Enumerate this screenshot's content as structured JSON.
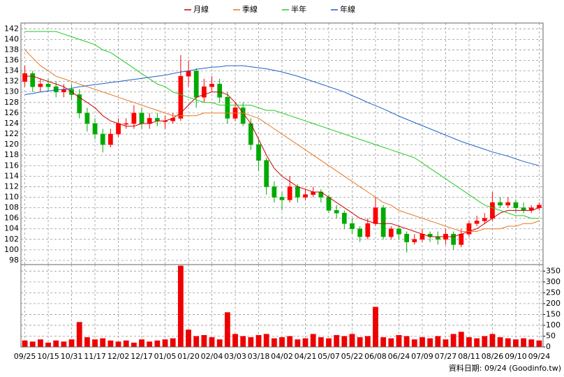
{
  "chart_data": [
    {
      "type": "candlestick",
      "up_color": "#ff0000",
      "down_color": "#00aa00",
      "open": [
        132,
        133.5,
        131,
        131.5,
        131,
        130,
        130.5,
        129.5,
        126,
        124,
        122,
        120,
        122,
        124,
        124,
        126,
        124,
        125,
        124.5,
        124.5,
        125,
        133,
        134,
        129,
        131,
        131.5,
        129,
        125,
        127,
        124,
        120,
        117,
        112,
        110,
        109.5,
        112,
        110,
        110.5,
        111,
        110,
        107.5,
        107,
        105,
        104,
        102.5,
        105,
        108,
        102.5,
        104,
        103,
        101.5,
        102,
        103,
        102.5,
        102,
        103,
        101,
        103,
        105,
        105.5,
        106,
        109,
        108.5,
        109,
        108,
        107.5,
        108
      ],
      "high": [
        135,
        134,
        132.5,
        132.5,
        132,
        131.5,
        131.5,
        130.5,
        127,
        125,
        123,
        123,
        125,
        125,
        127.5,
        127,
        126,
        126,
        125.5,
        126,
        137,
        136,
        134.5,
        132.5,
        133,
        132.5,
        130,
        128,
        128,
        125,
        121,
        117.5,
        113,
        111,
        114,
        112.5,
        111.5,
        112,
        111.5,
        110.5,
        108.5,
        107.5,
        106,
        104.5,
        106,
        110,
        108.5,
        104.5,
        104.5,
        103.5,
        103,
        104,
        103.5,
        103.5,
        104,
        103.5,
        104,
        105.5,
        106.5,
        107,
        111,
        110,
        110,
        109.5,
        109,
        108.5,
        109
      ],
      "low": [
        131,
        130,
        130,
        130,
        129,
        129,
        128.5,
        125,
        122.5,
        121,
        118.5,
        119.5,
        121.5,
        123,
        123,
        123,
        123,
        123.5,
        123,
        124,
        124.5,
        131,
        127,
        128,
        130,
        128,
        124,
        124.5,
        123.5,
        119,
        115,
        110.5,
        109,
        107.5,
        109,
        109,
        109.5,
        110,
        109,
        107,
        106,
        104,
        103,
        101.5,
        102,
        104.5,
        102,
        102,
        102,
        99.5,
        101,
        101.5,
        101.5,
        101,
        101,
        100,
        100.5,
        102.5,
        104.5,
        105,
        105.5,
        108,
        108,
        107,
        107,
        107,
        107.5
      ],
      "close": [
        133.5,
        131,
        131.5,
        131,
        130,
        130.5,
        129.5,
        126,
        124,
        122,
        120,
        122,
        124,
        124,
        126,
        124,
        125,
        124.5,
        124.5,
        125,
        133,
        134,
        129,
        131,
        131.5,
        129,
        125,
        127,
        124,
        120,
        117,
        112,
        110,
        109.5,
        112,
        110,
        110.5,
        111,
        110,
        107.5,
        107,
        105,
        104,
        102.5,
        105,
        108,
        102.5,
        104,
        103,
        101.5,
        102,
        103,
        102.5,
        102,
        103,
        101,
        103,
        105,
        105.5,
        106,
        109,
        108.5,
        109,
        108,
        107.5,
        108,
        108.5
      ],
      "series": [
        {
          "name": "月線",
          "color": "#cc0000",
          "values": [
            133,
            133,
            132.5,
            132,
            131.5,
            131,
            130,
            129,
            128,
            127,
            125.5,
            124.5,
            124,
            123.5,
            123.5,
            124,
            124,
            124.5,
            124.5,
            125,
            126,
            127.5,
            129,
            129.5,
            130,
            130,
            129.5,
            128,
            126,
            124,
            121,
            118,
            115.5,
            114,
            113,
            112,
            111.5,
            111,
            111,
            110,
            109,
            108,
            107,
            106,
            105.5,
            105,
            105,
            105,
            104.5,
            104,
            103.5,
            103,
            102.5,
            102.5,
            102.5,
            102.5,
            103,
            103.5,
            104,
            105,
            106,
            107,
            107.5,
            107.5,
            107.5,
            107.5,
            108
          ]
        },
        {
          "name": "季線",
          "color": "#e87722",
          "values": [
            138,
            136.5,
            135,
            134,
            133,
            132.5,
            132,
            131.5,
            131,
            130.5,
            130,
            129.5,
            129,
            128.5,
            128,
            127.5,
            127,
            126.5,
            126,
            125.5,
            125.5,
            125.5,
            125.5,
            126,
            126,
            126,
            126,
            126,
            126,
            125.5,
            125,
            124,
            123,
            122,
            121,
            120,
            119,
            118,
            117,
            116,
            115,
            114,
            113,
            112,
            111,
            110,
            109,
            108.5,
            107.5,
            107,
            106.5,
            106,
            105.5,
            105,
            104.5,
            104,
            103.5,
            103.5,
            103.5,
            104,
            104,
            104,
            104.5,
            104.5,
            105,
            105,
            105.5
          ]
        },
        {
          "name": "半年",
          "color": "#22cc22",
          "values": [
            141.5,
            141.5,
            141.5,
            141.5,
            141.5,
            141,
            140.5,
            140,
            139.5,
            139,
            138,
            137.5,
            136.5,
            135.5,
            134.5,
            133.5,
            132.5,
            131.5,
            131,
            130,
            129.5,
            129,
            128.5,
            128,
            128,
            127.5,
            127.5,
            127.5,
            127.5,
            127.5,
            127,
            126.5,
            126.5,
            126,
            125.5,
            125,
            124.5,
            124,
            123.5,
            123,
            122.5,
            122,
            121.5,
            121,
            120.5,
            120,
            119.5,
            119,
            118.5,
            118,
            117.5,
            116.5,
            115.5,
            114.5,
            113.5,
            112.5,
            111.5,
            110.5,
            109.5,
            108.5,
            108,
            107.5,
            107,
            106.5,
            106.5,
            106,
            106
          ]
        },
        {
          "name": "年線",
          "color": "#1f5fcc",
          "values": [
            129.5,
            129.7,
            130,
            130.2,
            130.4,
            130.5,
            130.7,
            131,
            131.2,
            131.4,
            131.6,
            131.8,
            132,
            132.2,
            132.4,
            132.6,
            132.8,
            133,
            133.2,
            133.5,
            133.8,
            134,
            134.3,
            134.5,
            134.7,
            134.8,
            135,
            135,
            135,
            134.8,
            134.6,
            134.4,
            134.1,
            133.8,
            133.4,
            133,
            132.5,
            132,
            131.5,
            131,
            130.5,
            130,
            129.3,
            128.7,
            128,
            127.4,
            126.8,
            126.1,
            125.4,
            124.8,
            124.2,
            123.6,
            123,
            122.4,
            121.8,
            121.2,
            120.6,
            120.1,
            119.6,
            119.1,
            118.6,
            118.2,
            117.8,
            117.3,
            116.8,
            116.4,
            116
          ]
        }
      ],
      "legend": "top",
      "grid": true,
      "xlim": [
        -0.5,
        66.5
      ],
      "ylim": [
        97.2,
        143.1
      ],
      "yticks": [
        98,
        100,
        102,
        104,
        106,
        108,
        110,
        112,
        114,
        116,
        118,
        120,
        122,
        124,
        126,
        128,
        130,
        132,
        134,
        136,
        138,
        140,
        142
      ]
    },
    {
      "type": "bar",
      "color": "#ee0000",
      "values": [
        30,
        25,
        35,
        20,
        30,
        25,
        35,
        115,
        45,
        35,
        40,
        30,
        25,
        30,
        20,
        35,
        25,
        30,
        35,
        40,
        375,
        80,
        50,
        55,
        45,
        35,
        160,
        60,
        50,
        45,
        55,
        60,
        40,
        45,
        50,
        35,
        40,
        60,
        45,
        40,
        55,
        50,
        60,
        45,
        50,
        185,
        45,
        40,
        55,
        50,
        35,
        45,
        40,
        50,
        35,
        60,
        70,
        45,
        40,
        50,
        60,
        45,
        40,
        35,
        40,
        35,
        30
      ],
      "grid": true,
      "xlim": [
        -0.5,
        66.5
      ],
      "ylim": [
        0,
        380
      ],
      "yticks": [
        0,
        50,
        100,
        150,
        200,
        250,
        300,
        350
      ],
      "xticks": [
        {
          "value": 0,
          "label": "09/25"
        },
        {
          "value": 3,
          "label": "10/15"
        },
        {
          "value": 6,
          "label": "10/31"
        },
        {
          "value": 9,
          "label": "11/17"
        },
        {
          "value": 12,
          "label": "12/02"
        },
        {
          "value": 15,
          "label": "12/17"
        },
        {
          "value": 18,
          "label": "01/05"
        },
        {
          "value": 21,
          "label": "01/20"
        },
        {
          "value": 24,
          "label": "02/04"
        },
        {
          "value": 27,
          "label": "03/03"
        },
        {
          "value": 30,
          "label": "03/18"
        },
        {
          "value": 33,
          "label": "04/02"
        },
        {
          "value": 36,
          "label": "04/21"
        },
        {
          "value": 39,
          "label": "05/07"
        },
        {
          "value": 42,
          "label": "05/22"
        },
        {
          "value": 45,
          "label": "06/08"
        },
        {
          "value": 48,
          "label": "06/24"
        },
        {
          "value": 51,
          "label": "07/09"
        },
        {
          "value": 54,
          "label": "07/27"
        },
        {
          "value": 57,
          "label": "08/11"
        },
        {
          "value": 60,
          "label": "08/26"
        },
        {
          "value": 63,
          "label": "09/10"
        },
        {
          "value": 66,
          "label": "09/24"
        }
      ],
      "note": "資料日期: 09/24  (Goodinfo.tw)"
    }
  ]
}
